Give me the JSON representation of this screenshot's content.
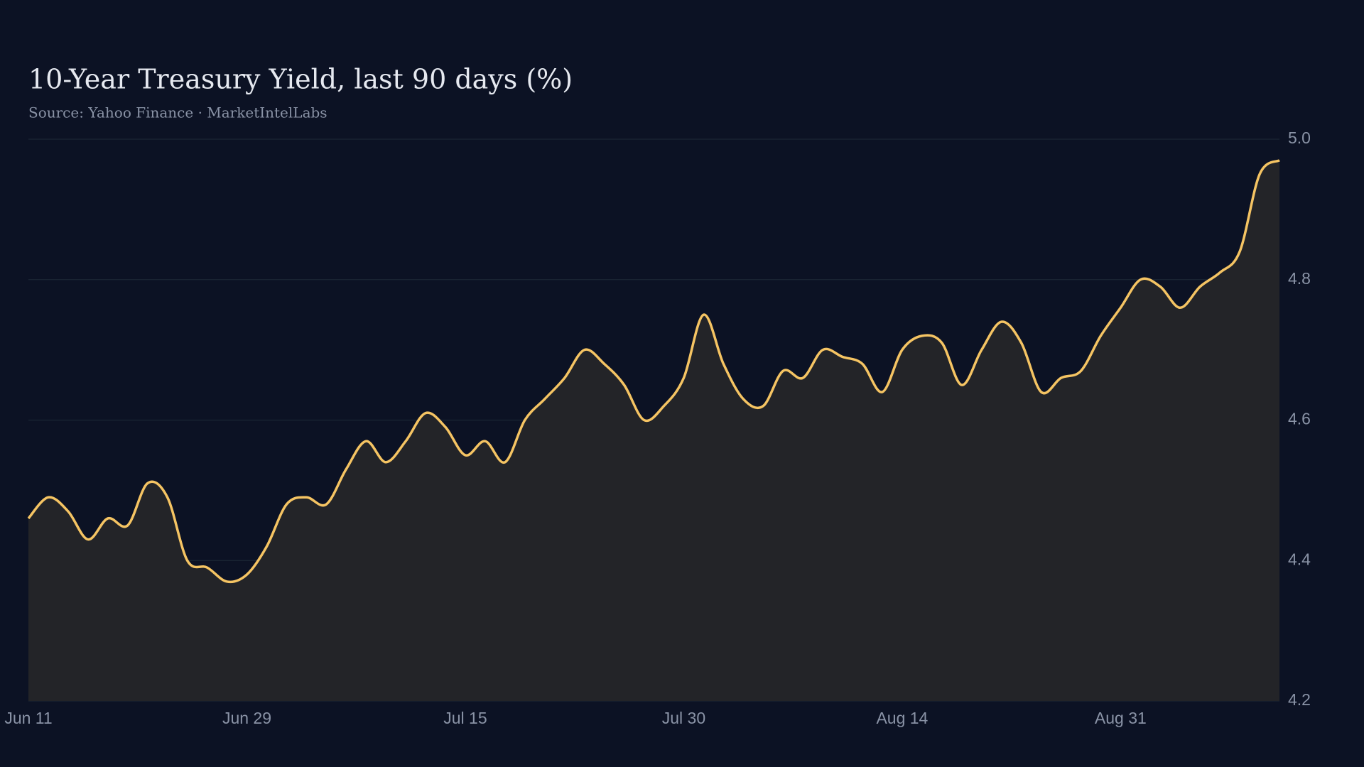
{
  "chart_data": {
    "type": "line",
    "title": "10-Year Treasury Yield, last 90 days (%)",
    "subtitle": "Source: Yahoo Finance · MarketIntelLabs",
    "categories": [
      "Jun 11",
      null,
      null,
      null,
      null,
      null,
      null,
      null,
      null,
      null,
      null,
      "Jun 29",
      null,
      null,
      null,
      null,
      null,
      null,
      null,
      null,
      null,
      null,
      "Jul 15",
      null,
      null,
      null,
      null,
      null,
      null,
      null,
      null,
      null,
      null,
      "Jul 30",
      null,
      null,
      null,
      null,
      null,
      null,
      null,
      null,
      null,
      null,
      "Aug 14",
      null,
      null,
      null,
      null,
      null,
      null,
      null,
      null,
      null,
      null,
      "Aug 31",
      null,
      null,
      null,
      null,
      null,
      null,
      null,
      null
    ],
    "series": [
      {
        "name": "10-Year Treasury Yield",
        "color": "#f5c463",
        "values": [
          4.46,
          4.49,
          4.47,
          4.43,
          4.46,
          4.45,
          4.51,
          4.49,
          4.4,
          4.39,
          4.37,
          4.38,
          4.42,
          4.48,
          4.49,
          4.48,
          4.53,
          4.57,
          4.54,
          4.57,
          4.61,
          4.59,
          4.55,
          4.57,
          4.54,
          4.6,
          4.63,
          4.66,
          4.7,
          4.68,
          4.65,
          4.6,
          4.62,
          4.66,
          4.75,
          4.68,
          4.63,
          4.62,
          4.67,
          4.66,
          4.7,
          4.69,
          4.68,
          4.64,
          4.7,
          4.72,
          4.71,
          4.65,
          4.7,
          4.74,
          4.71,
          4.64,
          4.66,
          4.67,
          4.72,
          4.76,
          4.8,
          4.79,
          4.76,
          4.79,
          4.81,
          4.84,
          4.95,
          4.97
        ]
      }
    ],
    "ylim": [
      4.2,
      5.0
    ],
    "yticks": [
      {
        "value": 5,
        "label": "5.0"
      },
      4.8,
      4.6,
      4.4,
      4.2
    ],
    "grid": true
  }
}
